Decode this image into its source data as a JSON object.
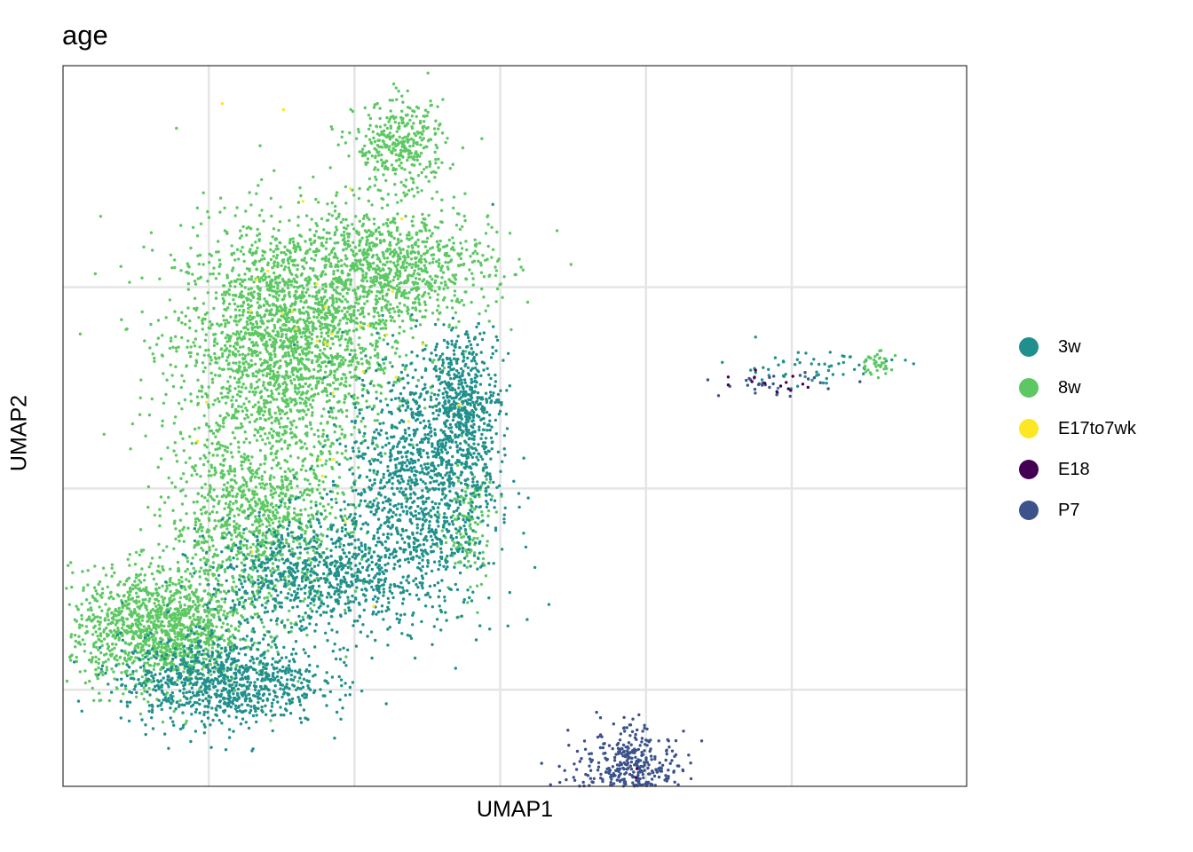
{
  "chart_data": {
    "type": "scatter",
    "title": "age",
    "xlabel": "UMAP1",
    "ylabel": "UMAP2",
    "xlim": [
      -7,
      14.7
    ],
    "ylim": [
      -7.4,
      10.5
    ],
    "x_gridlines": [
      -3.5,
      0,
      3.5,
      7,
      10.5
    ],
    "y_gridlines": [
      -5,
      0,
      5
    ],
    "show_tick_labels": false,
    "grid": true,
    "legend_position": "right",
    "series": [
      {
        "name": "3w",
        "color": "#21908C"
      },
      {
        "name": "8w",
        "color": "#5DC863"
      },
      {
        "name": "E17to7wk",
        "color": "#FDE725"
      },
      {
        "name": "E18",
        "color": "#440154"
      },
      {
        "name": "P7",
        "color": "#3B528B"
      }
    ],
    "clusters": [
      {
        "series": "8w",
        "n": 2200,
        "cx": -1.7,
        "cy": 3.6,
        "sx": 1.3,
        "sy": 1.5
      },
      {
        "series": "8w",
        "n": 1300,
        "cx": -4.7,
        "cy": -3.5,
        "sx": 1.05,
        "sy": 0.75
      },
      {
        "series": "8w",
        "n": 1000,
        "cx": -2.3,
        "cy": -0.8,
        "sx": 1.1,
        "sy": 1.1
      },
      {
        "series": "8w",
        "n": 350,
        "cx": 1.1,
        "cy": 8.5,
        "sx": 0.55,
        "sy": 0.55
      },
      {
        "series": "8w",
        "n": 900,
        "cx": 0.9,
        "cy": 5.5,
        "sx": 1.2,
        "sy": 0.75
      },
      {
        "series": "8w",
        "n": 140,
        "cx": 2.7,
        "cy": -1.0,
        "sx": 0.3,
        "sy": 0.9
      },
      {
        "series": "3w",
        "n": 1200,
        "cx": 1.6,
        "cy": 0.2,
        "sx": 0.9,
        "sy": 1.6
      },
      {
        "series": "3w",
        "n": 900,
        "cx": -3.2,
        "cy": -4.8,
        "sx": 1.2,
        "sy": 0.55
      },
      {
        "series": "3w",
        "n": 800,
        "cx": -0.9,
        "cy": -2.2,
        "sx": 1.3,
        "sy": 0.75
      },
      {
        "series": "3w",
        "n": 450,
        "cx": 2.7,
        "cy": 2.1,
        "sx": 0.4,
        "sy": 0.9
      },
      {
        "series": "3w",
        "n": 60,
        "cx": 11.0,
        "cy": 3.0,
        "sx": 1.1,
        "sy": 0.25
      },
      {
        "series": "8w",
        "n": 40,
        "cx": 12.5,
        "cy": 3.1,
        "sx": 0.2,
        "sy": 0.15
      },
      {
        "series": "E17to7wk",
        "n": 35,
        "cx": -0.8,
        "cy": 2.7,
        "sx": 1.6,
        "sy": 2.4
      },
      {
        "series": "P7",
        "n": 520,
        "cx": 6.6,
        "cy": -7.4,
        "sx": 0.7,
        "sy": 0.65
      },
      {
        "series": "P7",
        "n": 60,
        "cx": 6.7,
        "cy": -6.6,
        "sx": 0.2,
        "sy": 0.35
      },
      {
        "series": "P7",
        "n": 30,
        "cx": 10.0,
        "cy": 2.6,
        "sx": 0.6,
        "sy": 0.15
      },
      {
        "series": "E18",
        "n": 14,
        "cx": 9.8,
        "cy": 2.6,
        "sx": 0.6,
        "sy": 0.12
      },
      {
        "series": "E18",
        "n": 3,
        "cx": 6.8,
        "cy": -7.2,
        "sx": 0.3,
        "sy": 0.3
      }
    ]
  }
}
